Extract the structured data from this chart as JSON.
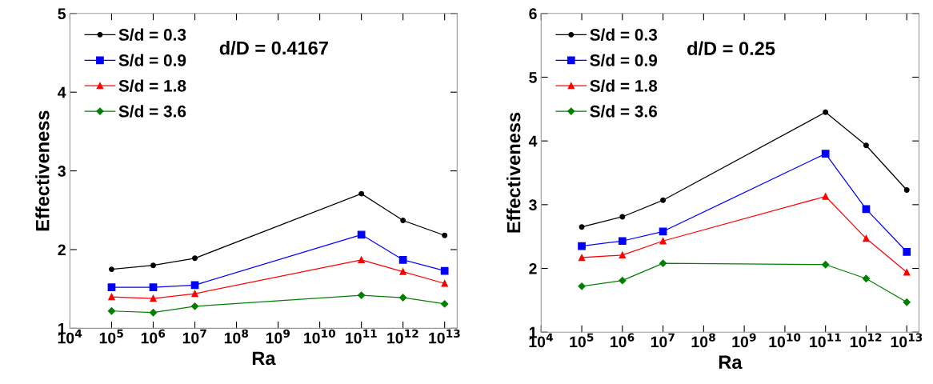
{
  "chart_data": [
    {
      "type": "line",
      "xlabel": "Ra",
      "ylabel": "Effectiveness",
      "log": "x",
      "legend": "top left",
      "grid": false,
      "annotations": [
        "d/D = 0.4167"
      ],
      "x": [
        100000,
        1000000,
        10000000,
        100000000000,
        1000000000000,
        10000000000000
      ],
      "xlim": [
        10000,
        20000000000000
      ],
      "xticks": [
        {
          "value": 10000,
          "label": "10$^{4}$"
        },
        {
          "value": 100000,
          "label": "10$^{5}$"
        },
        {
          "value": 1000000,
          "label": "10$^{6}$"
        },
        {
          "value": 10000000,
          "label": "10$^{7}$"
        },
        {
          "value": 100000000,
          "label": "10$^{8}$"
        },
        {
          "value": 1000000000,
          "label": "10$^{9}$"
        },
        {
          "value": 10000000000,
          "label": "10$^{10}$"
        },
        {
          "value": 100000000000,
          "label": "10$^{11}$"
        },
        {
          "value": 1000000000000,
          "label": "10$^{12}$"
        },
        {
          "value": 10000000000000,
          "label": "10$^{13}$"
        }
      ],
      "ylim": [
        1,
        5
      ],
      "yticks": [
        1,
        2,
        3,
        4,
        5
      ],
      "series": [
        {
          "name": "S/d = 0.3",
          "color": "#000000",
          "marker": "circle",
          "values": [
            1.75,
            1.8,
            1.89,
            2.71,
            2.37,
            2.18
          ]
        },
        {
          "name": "S/d = 0.9",
          "color": "#0000ff",
          "marker": "square",
          "values": [
            1.52,
            1.52,
            1.55,
            2.19,
            1.87,
            1.73
          ]
        },
        {
          "name": "S/d = 1.8",
          "color": "#ff0000",
          "marker": "triangle",
          "values": [
            1.4,
            1.38,
            1.44,
            1.87,
            1.72,
            1.57
          ]
        },
        {
          "name": "S/d = 3.6",
          "color": "#008000",
          "marker": "diamond",
          "values": [
            1.22,
            1.2,
            1.28,
            1.42,
            1.39,
            1.31
          ]
        }
      ]
    },
    {
      "type": "line",
      "xlabel": "Ra",
      "ylabel": "Effectiveness",
      "log": "x",
      "legend": "top left",
      "grid": false,
      "annotations": [
        "d/D = 0.25"
      ],
      "x": [
        100000,
        1000000,
        10000000,
        100000000000,
        1000000000000,
        10000000000000
      ],
      "xlim": [
        10000,
        20000000000000
      ],
      "xticks": [
        {
          "value": 10000,
          "label": "10$^{4}$"
        },
        {
          "value": 100000,
          "label": "10$^{5}$"
        },
        {
          "value": 1000000,
          "label": "10$^{6}$"
        },
        {
          "value": 10000000,
          "label": "10$^{7}$"
        },
        {
          "value": 100000000,
          "label": "10$^{8}$"
        },
        {
          "value": 1000000000,
          "label": "10$^{9}$"
        },
        {
          "value": 10000000000,
          "label": "10$^{10}$"
        },
        {
          "value": 100000000000,
          "label": "10$^{11}$"
        },
        {
          "value": 1000000000000,
          "label": "10$^{12}$"
        },
        {
          "value": 10000000000000,
          "label": "10$^{13}$"
        }
      ],
      "ylim": [
        1,
        6
      ],
      "yticks": [
        1,
        2,
        3,
        4,
        5,
        6
      ],
      "series": [
        {
          "name": "S/d = 0.3",
          "color": "#000000",
          "marker": "circle",
          "values": [
            2.65,
            2.81,
            3.07,
            4.45,
            3.93,
            3.23
          ]
        },
        {
          "name": "S/d = 0.9",
          "color": "#0000ff",
          "marker": "square",
          "values": [
            2.35,
            2.43,
            2.58,
            3.8,
            2.93,
            2.26
          ]
        },
        {
          "name": "S/d = 1.8",
          "color": "#ff0000",
          "marker": "triangle",
          "values": [
            2.17,
            2.21,
            2.43,
            3.13,
            2.47,
            1.94
          ]
        },
        {
          "name": "S/d = 3.6",
          "color": "#008000",
          "marker": "diamond",
          "values": [
            1.72,
            1.81,
            2.08,
            2.06,
            1.84,
            1.47
          ]
        }
      ]
    }
  ]
}
